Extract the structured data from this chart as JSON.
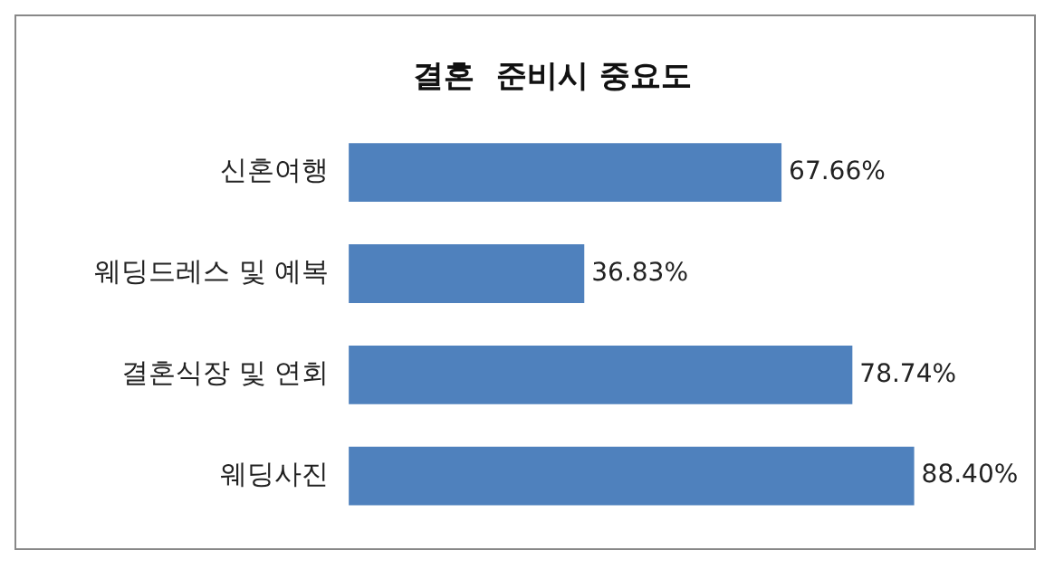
{
  "chart_data": {
    "type": "bar",
    "orientation": "horizontal",
    "title": "결혼  준비시 중요도",
    "categories": [
      "신혼여행",
      "웨딩드레스 및 예복",
      "결혼식장 및 연회",
      "웨딩사진"
    ],
    "values": [
      67.66,
      36.83,
      78.74,
      88.4
    ],
    "value_labels": [
      "67.66%",
      "36.83%",
      "78.74%",
      "88.40%"
    ],
    "color": "#4f81bd",
    "tick_labels": "y",
    "legend": false
  }
}
